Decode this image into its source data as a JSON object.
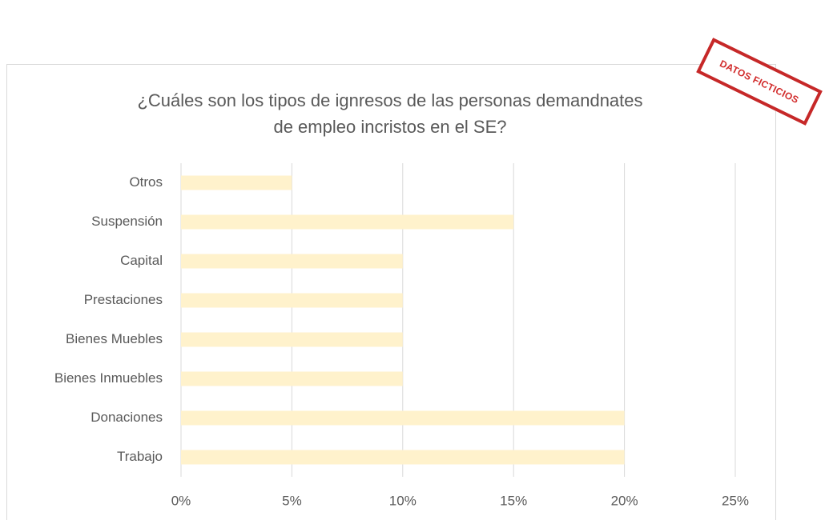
{
  "chart_data": {
    "type": "barh",
    "title": "¿Cuáles son los tipos de ignresos de las personas demandnates de empleo incristos en el SE?",
    "title_lines": [
      "¿Cuáles son los tipos de ignresos de las personas demandnates",
      "de empleo incristos en el SE?"
    ],
    "stamp": "DATOS FICTICIOS",
    "categories": [
      "Otros",
      "Suspensión",
      "Capital",
      "Prestaciones",
      "Bienes Muebles",
      "Bienes Inmuebles",
      "Donaciones",
      "Trabajo"
    ],
    "values": [
      5,
      15,
      10,
      10,
      10,
      10,
      20,
      20
    ],
    "color": "#fff2cc",
    "xlim": [
      0,
      25
    ],
    "xticks": [
      {
        "value": 0,
        "label": "0%"
      },
      {
        "value": 5,
        "label": "5%"
      },
      {
        "value": 10,
        "label": "10%"
      },
      {
        "value": 15,
        "label": "15%"
      },
      {
        "value": 20,
        "label": "20%"
      },
      {
        "value": 25,
        "label": "25%"
      }
    ],
    "grid": true
  }
}
